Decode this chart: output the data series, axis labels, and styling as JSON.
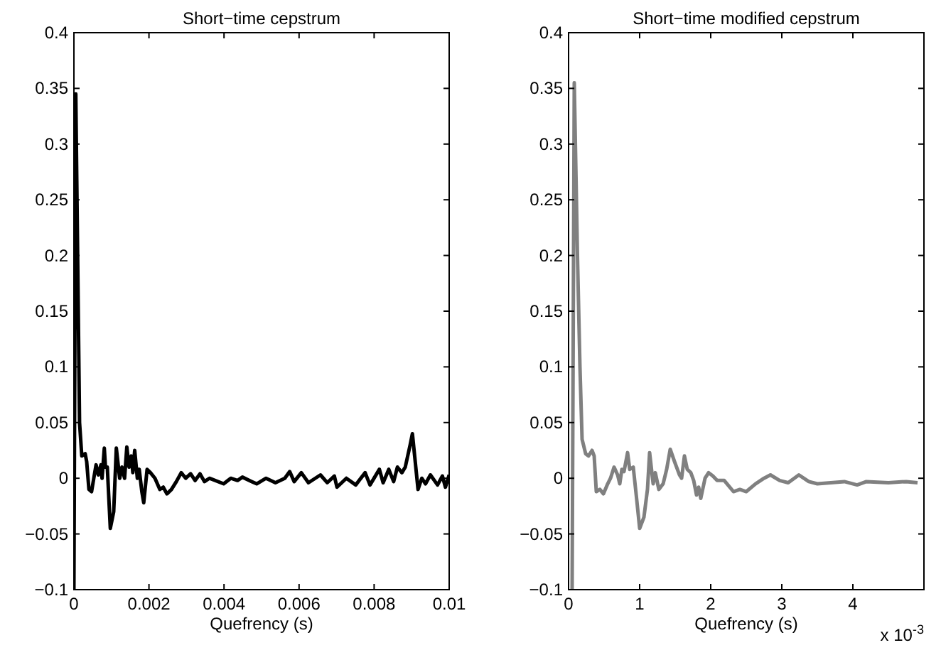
{
  "chart_data": [
    {
      "type": "line",
      "title": "Short−time cepstrum",
      "xlabel": "Quefrency (s)",
      "xlim": [
        0,
        0.01
      ],
      "xticks": [
        0,
        0.002,
        0.004,
        0.006,
        0.008,
        0.01
      ],
      "ylim": [
        -0.1,
        0.4
      ],
      "yticks": [
        -0.1,
        -0.05,
        0,
        0.05,
        0.1,
        0.15,
        0.2,
        0.25,
        0.3,
        0.35,
        0.4
      ],
      "grid": false,
      "series": [
        {
          "color": "#000000",
          "x": [
            0,
            5e-05,
            0.00015,
            0.00021,
            0.0003,
            0.00034,
            0.0004,
            0.00047,
            0.00053,
            0.00059,
            0.00065,
            0.00072,
            0.00075,
            0.00081,
            0.00084,
            0.00089,
            0.00097,
            0.00106,
            0.00113,
            0.00122,
            0.00128,
            0.00135,
            0.00141,
            0.00147,
            0.00153,
            0.00157,
            0.00162,
            0.00169,
            0.00174,
            0.00181,
            0.00186,
            0.00195,
            0.00204,
            0.00216,
            0.00229,
            0.00238,
            0.00248,
            0.0026,
            0.00273,
            0.00286,
            0.00298,
            0.00311,
            0.00323,
            0.00336,
            0.00348,
            0.00361,
            0.00399,
            0.00418,
            0.00436,
            0.00449,
            0.00474,
            0.00487,
            0.00512,
            0.00537,
            0.00562,
            0.00575,
            0.00587,
            0.00606,
            0.00625,
            0.00657,
            0.00675,
            0.00694,
            0.00701,
            0.00726,
            0.00751,
            0.00776,
            0.00789,
            0.00814,
            0.00824,
            0.00839,
            0.00852,
            0.00862,
            0.00874,
            0.00883,
            0.00896,
            0.00902,
            0.00908,
            0.00917,
            0.00927,
            0.00937,
            0.0095,
            0.00969,
            0.00982,
            0.0099,
            0.01
          ],
          "values": [
            -0.1,
            0.345,
            0.05,
            0.02,
            0.022,
            0.015,
            -0.01,
            -0.012,
            0,
            0.012,
            0.003,
            0.012,
            0,
            0.027,
            0.01,
            0.01,
            -0.045,
            -0.03,
            0.027,
            0,
            0.01,
            0,
            0.028,
            0.01,
            0.02,
            0.005,
            0.025,
            0,
            0.008,
            -0.012,
            -0.022,
            0.008,
            0.005,
            0,
            -0.01,
            -0.008,
            -0.014,
            -0.01,
            -0.003,
            0.005,
            0,
            0.004,
            -0.002,
            0.004,
            -0.003,
            0,
            -0.005,
            0,
            -0.002,
            0.001,
            -0.003,
            -0.005,
            0,
            -0.004,
            0,
            0.006,
            -0.003,
            0.005,
            -0.004,
            0.003,
            -0.004,
            0.002,
            -0.008,
            0,
            -0.006,
            0.005,
            -0.006,
            0.008,
            -0.004,
            0.008,
            -0.003,
            0.01,
            0.005,
            0.01,
            0.03,
            0.04,
            0.02,
            -0.01,
            0,
            -0.005,
            0.003,
            -0.006,
            0.002,
            -0.008,
            0.003
          ]
        }
      ]
    },
    {
      "type": "line",
      "title": "Short−time modified cepstrum",
      "xlabel": "Quefrency (s)",
      "xlim": [
        0,
        5
      ],
      "xticks": [
        0,
        1,
        2,
        3,
        4
      ],
      "ylim": [
        -0.1,
        0.4
      ],
      "yticks": [
        -0.1,
        -0.05,
        0,
        0.05,
        0.1,
        0.15,
        0.2,
        0.25,
        0.3,
        0.35,
        0.4
      ],
      "grid": false,
      "annotations": [
        "x 10$^{-3}$"
      ],
      "series": [
        {
          "color": "#808080",
          "x": [
            0.05,
            0.08,
            0.125,
            0.16,
            0.19,
            0.24,
            0.28,
            0.33,
            0.36,
            0.39,
            0.44,
            0.49,
            0.55,
            0.59,
            0.64,
            0.69,
            0.72,
            0.75,
            0.78,
            0.83,
            0.86,
            0.91,
            0.96,
            1,
            1.06,
            1.11,
            1.14,
            1.19,
            1.22,
            1.27,
            1.33,
            1.38,
            1.43,
            1.49,
            1.56,
            1.59,
            1.63,
            1.67,
            1.72,
            1.76,
            1.8,
            1.83,
            1.86,
            1.92,
            1.97,
            2.03,
            2.09,
            2.19,
            2.32,
            2.41,
            2.5,
            2.63,
            2.75,
            2.84,
            2.97,
            3.09,
            3.24,
            3.38,
            3.5,
            3.69,
            3.88,
            4.06,
            4.19,
            4.5,
            4.75,
            4.91
          ],
          "values": [
            -0.1,
            0.355,
            0.2,
            0.1,
            0.035,
            0.022,
            0.02,
            0.025,
            0.02,
            -0.012,
            -0.01,
            -0.014,
            -0.005,
            0,
            0.01,
            0.003,
            -0.005,
            0.008,
            0.006,
            0.023,
            0.008,
            0.01,
            -0.02,
            -0.045,
            -0.035,
            -0.01,
            0.023,
            -0.005,
            0.005,
            -0.01,
            -0.005,
            0.008,
            0.026,
            0.015,
            0.003,
            0,
            0.02,
            0.008,
            0.005,
            -0.002,
            -0.015,
            -0.008,
            -0.018,
            0,
            0.005,
            0.002,
            -0.002,
            -0.002,
            -0.012,
            -0.01,
            -0.012,
            -0.005,
            0,
            0.003,
            -0.002,
            -0.004,
            0.003,
            -0.003,
            -0.005,
            -0.004,
            -0.003,
            -0.006,
            -0.003,
            -0.004,
            -0.003,
            -0.004
          ]
        }
      ]
    }
  ]
}
